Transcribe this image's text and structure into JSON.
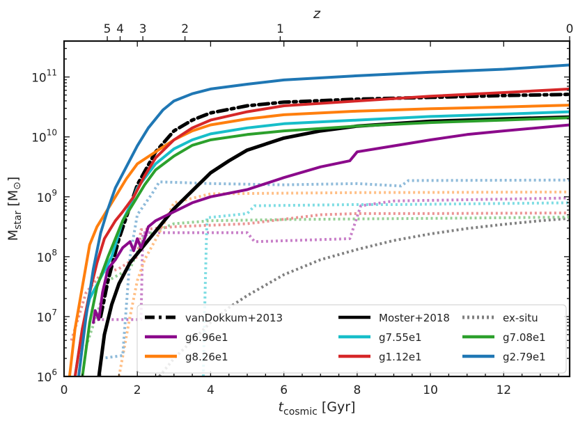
{
  "chart_data": {
    "type": "line",
    "xlabel_main": "t",
    "xlabel_sub": "cosmic",
    "xlabel_unit": " [Gyr]",
    "ylabel_main": "M",
    "ylabel_sub": "star",
    "ylabel_unit": " [M",
    "ylabel_sun": "⊙",
    "ylabel_close": "]",
    "top_axis_label": "z",
    "xlim": [
      0,
      13.8
    ],
    "ylim_log10": [
      6,
      11.6
    ],
    "yscale": "log",
    "x_ticks": [
      {
        "v": 0,
        "label": "0"
      },
      {
        "v": 2,
        "label": "2"
      },
      {
        "v": 4,
        "label": "4"
      },
      {
        "v": 6,
        "label": "6"
      },
      {
        "v": 8,
        "label": "8"
      },
      {
        "v": 10,
        "label": "10"
      },
      {
        "v": 12,
        "label": "12"
      }
    ],
    "y_ticks": [
      {
        "exp": 6,
        "base": "10",
        "sup": "6"
      },
      {
        "exp": 7,
        "base": "10",
        "sup": "7"
      },
      {
        "exp": 8,
        "base": "10",
        "sup": "8"
      },
      {
        "exp": 9,
        "base": "10",
        "sup": "9"
      },
      {
        "exp": 10,
        "base": "10",
        "sup": "10"
      },
      {
        "exp": 11,
        "base": "10",
        "sup": "11"
      }
    ],
    "top_ticks": [
      {
        "t": 1.18,
        "label": "5"
      },
      {
        "t": 1.53,
        "label": "4"
      },
      {
        "t": 2.15,
        "label": "3"
      },
      {
        "t": 3.3,
        "label": "2"
      },
      {
        "t": 5.9,
        "label": "1"
      },
      {
        "t": 13.8,
        "label": "0"
      }
    ],
    "series": [
      {
        "name": "Moster+2018",
        "color": "#000000",
        "style": "solid",
        "width": 5,
        "points": [
          [
            0.95,
            6.0
          ],
          [
            1.1,
            6.7
          ],
          [
            1.3,
            7.2
          ],
          [
            1.5,
            7.55
          ],
          [
            1.8,
            7.9
          ],
          [
            2.2,
            8.2
          ],
          [
            2.6,
            8.5
          ],
          [
            3.0,
            8.8
          ],
          [
            3.5,
            9.1
          ],
          [
            4.0,
            9.4
          ],
          [
            4.5,
            9.6
          ],
          [
            5.0,
            9.78
          ],
          [
            6.0,
            9.98
          ],
          [
            7.0,
            10.1
          ],
          [
            8.0,
            10.18
          ],
          [
            10.0,
            10.26
          ],
          [
            12.0,
            10.3
          ],
          [
            13.8,
            10.33
          ]
        ]
      },
      {
        "name": "vanDokkum+2013",
        "color": "#000000",
        "style": "dashdot",
        "width": 5,
        "points": [
          [
            1.0,
            7.0
          ],
          [
            1.2,
            7.6
          ],
          [
            1.5,
            8.3
          ],
          [
            2.0,
            9.2
          ],
          [
            2.5,
            9.75
          ],
          [
            3.0,
            10.1
          ],
          [
            3.5,
            10.28
          ],
          [
            4.0,
            10.4
          ],
          [
            5.0,
            10.52
          ],
          [
            6.0,
            10.58
          ],
          [
            8.0,
            10.63
          ],
          [
            10.0,
            10.66
          ],
          [
            12.0,
            10.69
          ],
          [
            13.8,
            10.71
          ]
        ]
      },
      {
        "name": "g6.96e1",
        "color": "#8b0a8b",
        "style": "solid",
        "width": 4,
        "points": [
          [
            0.8,
            6.9
          ],
          [
            0.85,
            7.1
          ],
          [
            0.95,
            6.95
          ],
          [
            1.05,
            7.4
          ],
          [
            1.2,
            7.8
          ],
          [
            1.4,
            7.95
          ],
          [
            1.6,
            8.15
          ],
          [
            1.8,
            8.25
          ],
          [
            1.9,
            8.1
          ],
          [
            2.0,
            8.3
          ],
          [
            2.1,
            8.15
          ],
          [
            2.2,
            8.3
          ],
          [
            2.3,
            8.5
          ],
          [
            2.5,
            8.6
          ],
          [
            3.0,
            8.75
          ],
          [
            3.5,
            8.9
          ],
          [
            4.0,
            9.0
          ],
          [
            5.0,
            9.12
          ],
          [
            6.0,
            9.32
          ],
          [
            7.0,
            9.5
          ],
          [
            7.8,
            9.6
          ],
          [
            8.0,
            9.75
          ],
          [
            9.0,
            9.85
          ],
          [
            10.0,
            9.95
          ],
          [
            11.0,
            10.04
          ],
          [
            12.0,
            10.1
          ],
          [
            13.8,
            10.2
          ]
        ]
      },
      {
        "name": "g7.55e1",
        "color": "#17bec9",
        "style": "solid",
        "width": 4,
        "points": [
          [
            0.3,
            6.0
          ],
          [
            0.5,
            6.8
          ],
          [
            0.7,
            7.3
          ],
          [
            1.0,
            7.65
          ],
          [
            1.3,
            8.0
          ],
          [
            1.6,
            8.6
          ],
          [
            1.8,
            8.85
          ],
          [
            2.0,
            9.15
          ],
          [
            2.5,
            9.55
          ],
          [
            3.0,
            9.8
          ],
          [
            3.5,
            9.95
          ],
          [
            4.0,
            10.05
          ],
          [
            5.0,
            10.15
          ],
          [
            6.0,
            10.22
          ],
          [
            8.0,
            10.28
          ],
          [
            10.0,
            10.34
          ],
          [
            12.0,
            10.38
          ],
          [
            13.8,
            10.42
          ]
        ]
      },
      {
        "name": "g7.08e1",
        "color": "#2ca02c",
        "style": "solid",
        "width": 4,
        "points": [
          [
            0.5,
            6.0
          ],
          [
            0.7,
            6.9
          ],
          [
            0.9,
            7.5
          ],
          [
            1.2,
            8.0
          ],
          [
            1.4,
            8.3
          ],
          [
            1.6,
            8.6
          ],
          [
            1.9,
            8.9
          ],
          [
            2.2,
            9.2
          ],
          [
            2.5,
            9.45
          ],
          [
            3.0,
            9.68
          ],
          [
            3.5,
            9.86
          ],
          [
            4.0,
            9.95
          ],
          [
            5.0,
            10.04
          ],
          [
            6.0,
            10.1
          ],
          [
            8.0,
            10.18
          ],
          [
            10.0,
            10.24
          ],
          [
            12.0,
            10.28
          ],
          [
            13.8,
            10.32
          ]
        ]
      },
      {
        "name": "g8.26e1",
        "color": "#ff7f0e",
        "style": "solid",
        "width": 4,
        "points": [
          [
            0.15,
            6.0
          ],
          [
            0.3,
            6.8
          ],
          [
            0.5,
            7.5
          ],
          [
            0.7,
            8.2
          ],
          [
            0.9,
            8.5
          ],
          [
            1.1,
            8.7
          ],
          [
            1.4,
            9.0
          ],
          [
            1.7,
            9.3
          ],
          [
            2.0,
            9.55
          ],
          [
            2.5,
            9.75
          ],
          [
            3.0,
            9.95
          ],
          [
            3.5,
            10.1
          ],
          [
            4.0,
            10.2
          ],
          [
            5.0,
            10.3
          ],
          [
            6.0,
            10.37
          ],
          [
            8.0,
            10.43
          ],
          [
            10.0,
            10.47
          ],
          [
            12.0,
            10.5
          ],
          [
            13.8,
            10.53
          ]
        ]
      },
      {
        "name": "g1.12e1",
        "color": "#d62728",
        "style": "solid",
        "width": 4,
        "points": [
          [
            0.3,
            6.0
          ],
          [
            0.5,
            6.8
          ],
          [
            0.7,
            7.4
          ],
          [
            0.9,
            7.9
          ],
          [
            1.1,
            8.3
          ],
          [
            1.4,
            8.6
          ],
          [
            1.6,
            8.75
          ],
          [
            1.9,
            9.0
          ],
          [
            2.2,
            9.35
          ],
          [
            2.5,
            9.65
          ],
          [
            3.0,
            9.95
          ],
          [
            3.5,
            10.15
          ],
          [
            4.0,
            10.28
          ],
          [
            5.0,
            10.42
          ],
          [
            6.0,
            10.52
          ],
          [
            8.0,
            10.6
          ],
          [
            10.0,
            10.68
          ],
          [
            12.0,
            10.74
          ],
          [
            13.8,
            10.8
          ]
        ]
      },
      {
        "name": "g2.79e1",
        "color": "#1f77b4",
        "style": "solid",
        "width": 4,
        "points": [
          [
            0.4,
            6.0
          ],
          [
            0.6,
            7.0
          ],
          [
            0.8,
            7.8
          ],
          [
            1.0,
            8.4
          ],
          [
            1.2,
            8.8
          ],
          [
            1.4,
            9.15
          ],
          [
            1.7,
            9.5
          ],
          [
            2.0,
            9.85
          ],
          [
            2.3,
            10.15
          ],
          [
            2.7,
            10.45
          ],
          [
            3.0,
            10.6
          ],
          [
            3.5,
            10.72
          ],
          [
            4.0,
            10.8
          ],
          [
            5.0,
            10.88
          ],
          [
            6.0,
            10.95
          ],
          [
            8.0,
            11.02
          ],
          [
            10.0,
            11.08
          ],
          [
            12.0,
            11.13
          ],
          [
            13.8,
            11.2
          ]
        ]
      },
      {
        "name": "ex-situ",
        "color": "#808080",
        "style": "dotted",
        "width": 4,
        "points": [
          [
            2.6,
            6.0
          ],
          [
            3.0,
            6.3
          ],
          [
            3.5,
            6.6
          ],
          [
            4.0,
            6.9
          ],
          [
            4.5,
            7.15
          ],
          [
            5.0,
            7.35
          ],
          [
            6.0,
            7.7
          ],
          [
            7.0,
            7.95
          ],
          [
            8.0,
            8.12
          ],
          [
            9.0,
            8.27
          ],
          [
            10.0,
            8.38
          ],
          [
            11.0,
            8.47
          ],
          [
            12.0,
            8.54
          ],
          [
            13.0,
            8.6
          ],
          [
            13.8,
            8.64
          ]
        ]
      },
      {
        "name": "ex-situ g6.96e1",
        "color": "#c87fc8",
        "style": "dotted",
        "width": 4,
        "legend": false,
        "points": [
          [
            0.9,
            6.95
          ],
          [
            2.1,
            6.95
          ],
          [
            2.15,
            8.4
          ],
          [
            5.0,
            8.4
          ],
          [
            5.2,
            8.25
          ],
          [
            7.8,
            8.3
          ],
          [
            8.1,
            8.85
          ],
          [
            9.0,
            8.93
          ],
          [
            13.8,
            8.98
          ]
        ]
      },
      {
        "name": "ex-situ g7.55e1",
        "color": "#7fdde3",
        "style": "dotted",
        "width": 4,
        "legend": false,
        "points": [
          [
            3.8,
            6.0
          ],
          [
            3.85,
            7.4
          ],
          [
            3.9,
            8.65
          ],
          [
            5.0,
            8.72
          ],
          [
            5.2,
            8.85
          ],
          [
            7.9,
            8.87
          ],
          [
            9.0,
            8.87
          ],
          [
            13.8,
            8.9
          ]
        ]
      },
      {
        "name": "ex-situ g7.08e1",
        "color": "#95d095",
        "style": "dotted",
        "width": 4,
        "legend": false,
        "points": [
          [
            0.6,
            6.5
          ],
          [
            1.2,
            7.6
          ],
          [
            1.8,
            7.8
          ],
          [
            2.2,
            8.35
          ],
          [
            3.0,
            8.55
          ],
          [
            4.0,
            8.6
          ],
          [
            6.0,
            8.62
          ],
          [
            8.0,
            8.63
          ],
          [
            10.0,
            8.64
          ],
          [
            13.8,
            8.66
          ]
        ]
      },
      {
        "name": "ex-situ g8.26e1",
        "color": "#ffbf86",
        "style": "dotted",
        "width": 4,
        "legend": false,
        "points": [
          [
            1.5,
            6.0
          ],
          [
            1.8,
            7.0
          ],
          [
            2.0,
            7.6
          ],
          [
            2.2,
            7.95
          ],
          [
            2.6,
            8.4
          ],
          [
            3.0,
            8.9
          ],
          [
            4.0,
            9.05
          ],
          [
            6.0,
            9.06
          ],
          [
            8.0,
            9.07
          ],
          [
            13.8,
            9.08
          ]
        ]
      },
      {
        "name": "ex-situ g1.12e1",
        "color": "#eb9393",
        "style": "dotted",
        "width": 4,
        "legend": false,
        "points": [
          [
            0.2,
            6.6
          ],
          [
            0.6,
            7.4
          ],
          [
            1.0,
            7.7
          ],
          [
            1.5,
            7.8
          ],
          [
            2.0,
            8.0
          ],
          [
            2.1,
            8.45
          ],
          [
            3.0,
            8.5
          ],
          [
            5.0,
            8.55
          ],
          [
            7.0,
            8.7
          ],
          [
            8.0,
            8.72
          ],
          [
            10.0,
            8.72
          ],
          [
            13.8,
            8.73
          ]
        ]
      },
      {
        "name": "ex-situ g2.79e1",
        "color": "#8fbbda",
        "style": "dotted",
        "width": 4,
        "legend": false,
        "points": [
          [
            1.0,
            6.3
          ],
          [
            1.6,
            6.35
          ],
          [
            1.8,
            8.0
          ],
          [
            2.0,
            8.7
          ],
          [
            2.4,
            9.05
          ],
          [
            2.6,
            9.25
          ],
          [
            4.0,
            9.22
          ],
          [
            6.0,
            9.2
          ],
          [
            8.0,
            9.22
          ],
          [
            9.2,
            9.18
          ],
          [
            9.4,
            9.27
          ],
          [
            13.8,
            9.28
          ]
        ]
      }
    ],
    "legend": [
      {
        "label": "vanDokkum+2013",
        "color": "#000000",
        "style": "dashdot"
      },
      {
        "label": "g6.96e1",
        "color": "#8b0a8b",
        "style": "solid"
      },
      {
        "label": "g8.26e1",
        "color": "#ff7f0e",
        "style": "solid"
      },
      {
        "label": "Moster+2018",
        "color": "#000000",
        "style": "solid"
      },
      {
        "label": "g7.55e1",
        "color": "#17bec9",
        "style": "solid"
      },
      {
        "label": "g1.12e1",
        "color": "#d62728",
        "style": "solid"
      },
      {
        "label": "ex-situ",
        "color": "#808080",
        "style": "dotted"
      },
      {
        "label": "g7.08e1",
        "color": "#2ca02c",
        "style": "solid"
      },
      {
        "label": "g2.79e1",
        "color": "#1f77b4",
        "style": "solid"
      }
    ],
    "legend_position": "lower-right"
  }
}
